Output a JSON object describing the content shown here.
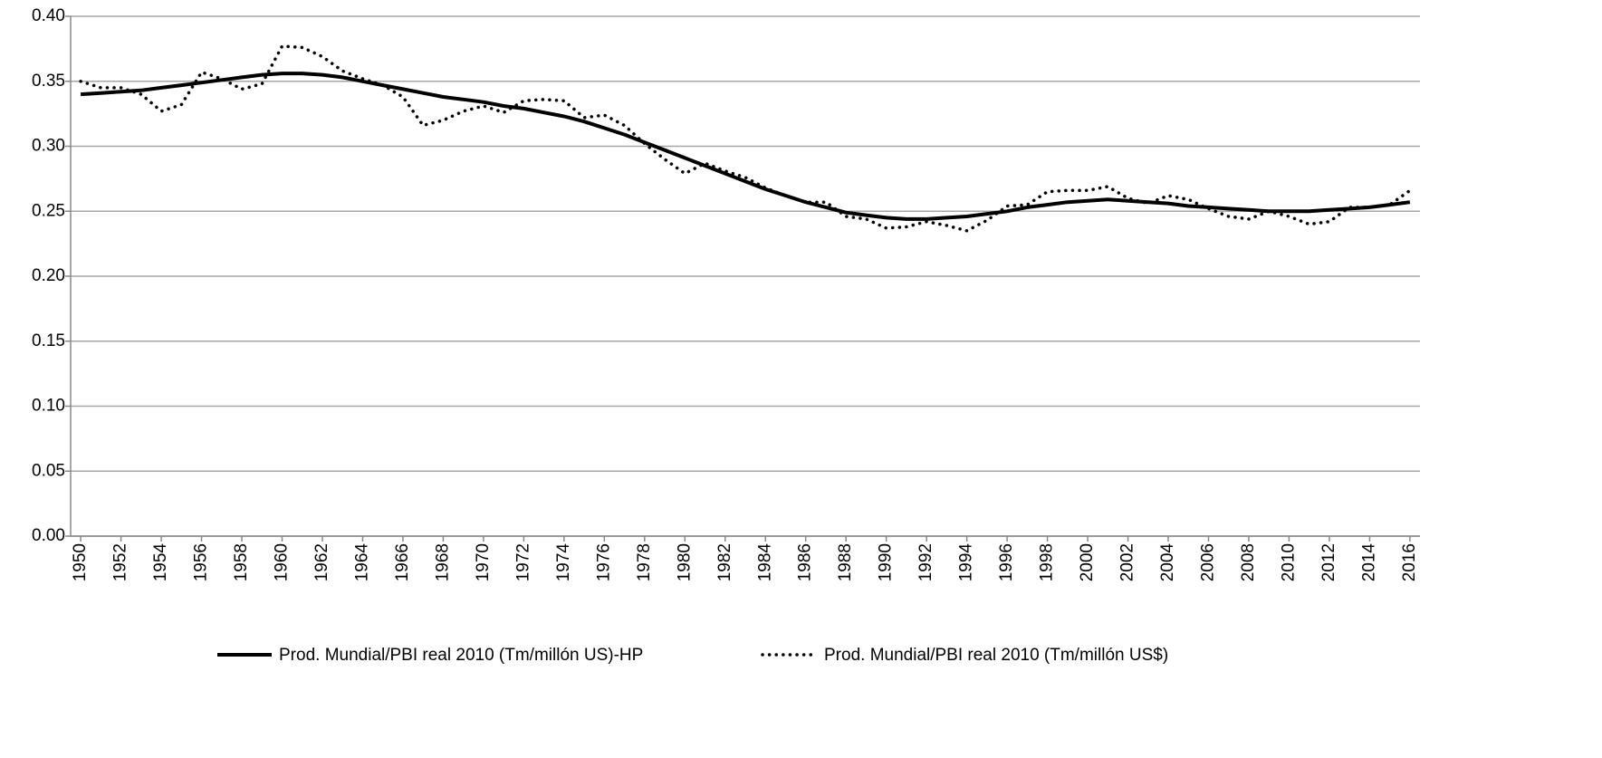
{
  "chart_data": {
    "type": "line",
    "x": [
      1950,
      1951,
      1952,
      1953,
      1954,
      1955,
      1956,
      1957,
      1958,
      1959,
      1960,
      1961,
      1962,
      1963,
      1964,
      1965,
      1966,
      1967,
      1968,
      1969,
      1970,
      1971,
      1972,
      1973,
      1974,
      1975,
      1976,
      1977,
      1978,
      1979,
      1980,
      1981,
      1982,
      1983,
      1984,
      1985,
      1986,
      1987,
      1988,
      1989,
      1990,
      1991,
      1992,
      1993,
      1994,
      1995,
      1996,
      1997,
      1998,
      1999,
      2000,
      2001,
      2002,
      2003,
      2004,
      2005,
      2006,
      2007,
      2008,
      2009,
      2010,
      2011,
      2012,
      2013,
      2014,
      2015,
      2016
    ],
    "series": [
      {
        "name": "Prod. Mundial/PBI real 2010 (Tm/millón US)-HP",
        "color": "#000000",
        "style": "solid",
        "values": [
          0.34,
          0.341,
          0.342,
          0.343,
          0.345,
          0.347,
          0.349,
          0.351,
          0.353,
          0.355,
          0.356,
          0.356,
          0.355,
          0.353,
          0.35,
          0.347,
          0.344,
          0.341,
          0.338,
          0.336,
          0.334,
          0.331,
          0.329,
          0.326,
          0.323,
          0.319,
          0.314,
          0.309,
          0.303,
          0.297,
          0.291,
          0.285,
          0.279,
          0.273,
          0.267,
          0.262,
          0.257,
          0.253,
          0.249,
          0.247,
          0.245,
          0.244,
          0.244,
          0.245,
          0.246,
          0.248,
          0.25,
          0.253,
          0.255,
          0.257,
          0.258,
          0.259,
          0.258,
          0.257,
          0.256,
          0.254,
          0.253,
          0.252,
          0.251,
          0.25,
          0.25,
          0.25,
          0.251,
          0.252,
          0.253,
          0.255,
          0.257
        ]
      },
      {
        "name": "Prod. Mundial/PBI real 2010 (Tm/millón US$)",
        "color": "#000000",
        "style": "dotted",
        "values": [
          0.35,
          0.345,
          0.345,
          0.34,
          0.327,
          0.332,
          0.357,
          0.352,
          0.344,
          0.348,
          0.377,
          0.376,
          0.369,
          0.358,
          0.352,
          0.347,
          0.338,
          0.316,
          0.32,
          0.327,
          0.331,
          0.326,
          0.335,
          0.336,
          0.335,
          0.322,
          0.324,
          0.316,
          0.302,
          0.29,
          0.279,
          0.287,
          0.281,
          0.276,
          0.268,
          0.262,
          0.257,
          0.257,
          0.246,
          0.244,
          0.237,
          0.238,
          0.242,
          0.239,
          0.235,
          0.243,
          0.254,
          0.255,
          0.265,
          0.266,
          0.266,
          0.269,
          0.26,
          0.256,
          0.262,
          0.259,
          0.252,
          0.246,
          0.244,
          0.25,
          0.246,
          0.24,
          0.242,
          0.253,
          0.253,
          0.255,
          0.266
        ]
      }
    ],
    "xlim": [
      1949.5,
      2016.5
    ],
    "xticks": [
      1950,
      1952,
      1954,
      1956,
      1958,
      1960,
      1962,
      1964,
      1966,
      1968,
      1970,
      1972,
      1974,
      1976,
      1978,
      1980,
      1982,
      1984,
      1986,
      1988,
      1990,
      1992,
      1994,
      1996,
      1998,
      2000,
      2002,
      2004,
      2006,
      2008,
      2010,
      2012,
      2014,
      2016
    ],
    "ylim": [
      0,
      0.4
    ],
    "yticks": [
      {
        "value": 0,
        "label": "0.00"
      },
      {
        "value": 0.05,
        "label": "0.05"
      },
      {
        "value": 0.1,
        "label": "0.10"
      },
      {
        "value": 0.15,
        "label": "0.15"
      },
      {
        "value": 0.2,
        "label": "0.20"
      },
      {
        "value": 0.25,
        "label": "0.25"
      },
      {
        "value": 0.3,
        "label": "0.30"
      },
      {
        "value": 0.35,
        "label": "0.35"
      },
      {
        "value": 0.4,
        "label": "0.40"
      }
    ],
    "grid": true,
    "legend": "bottom"
  }
}
